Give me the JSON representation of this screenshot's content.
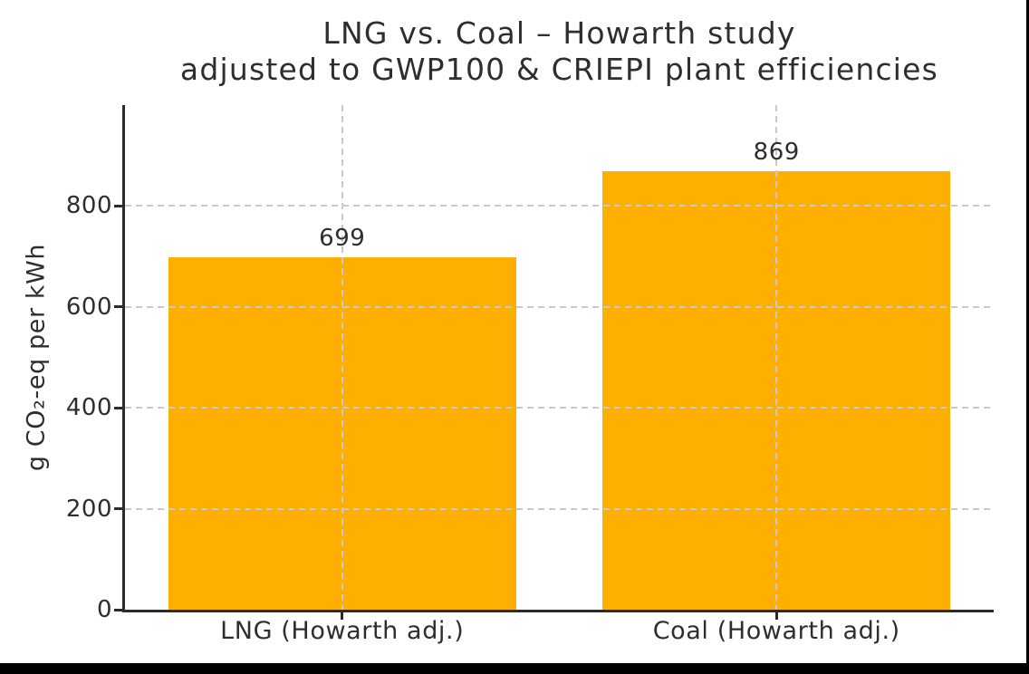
{
  "chart_data": {
    "type": "bar",
    "title_line1": "LNG vs. Coal – Howarth study",
    "title_line2": "adjusted to GWP100 & CRIEPI plant efficiencies",
    "ylabel": "g CO₂-eq per kWh",
    "xlabel": "",
    "categories": [
      "LNG (Howarth adj.)",
      "Coal (Howarth adj.)"
    ],
    "values": [
      699,
      869
    ],
    "data_labels": [
      "699",
      "869"
    ],
    "ytick_values": [
      0,
      200,
      400,
      600,
      800
    ],
    "ytick_labels": [
      "0",
      "200",
      "400",
      "600",
      "800"
    ],
    "ylim": [
      0,
      1000
    ],
    "bar_width_fraction": 0.8,
    "grid": "dashed, horizontal at y-ticks and vertical at bar centers, drawn over bars",
    "legend_position": "none",
    "colors": {
      "bar": "#ffaf00",
      "grid": "#c9c9c9",
      "axis": "#2b2b2b",
      "text": "#2e2e2e",
      "background": "#ffffff",
      "frame_edge": "#000000"
    }
  }
}
